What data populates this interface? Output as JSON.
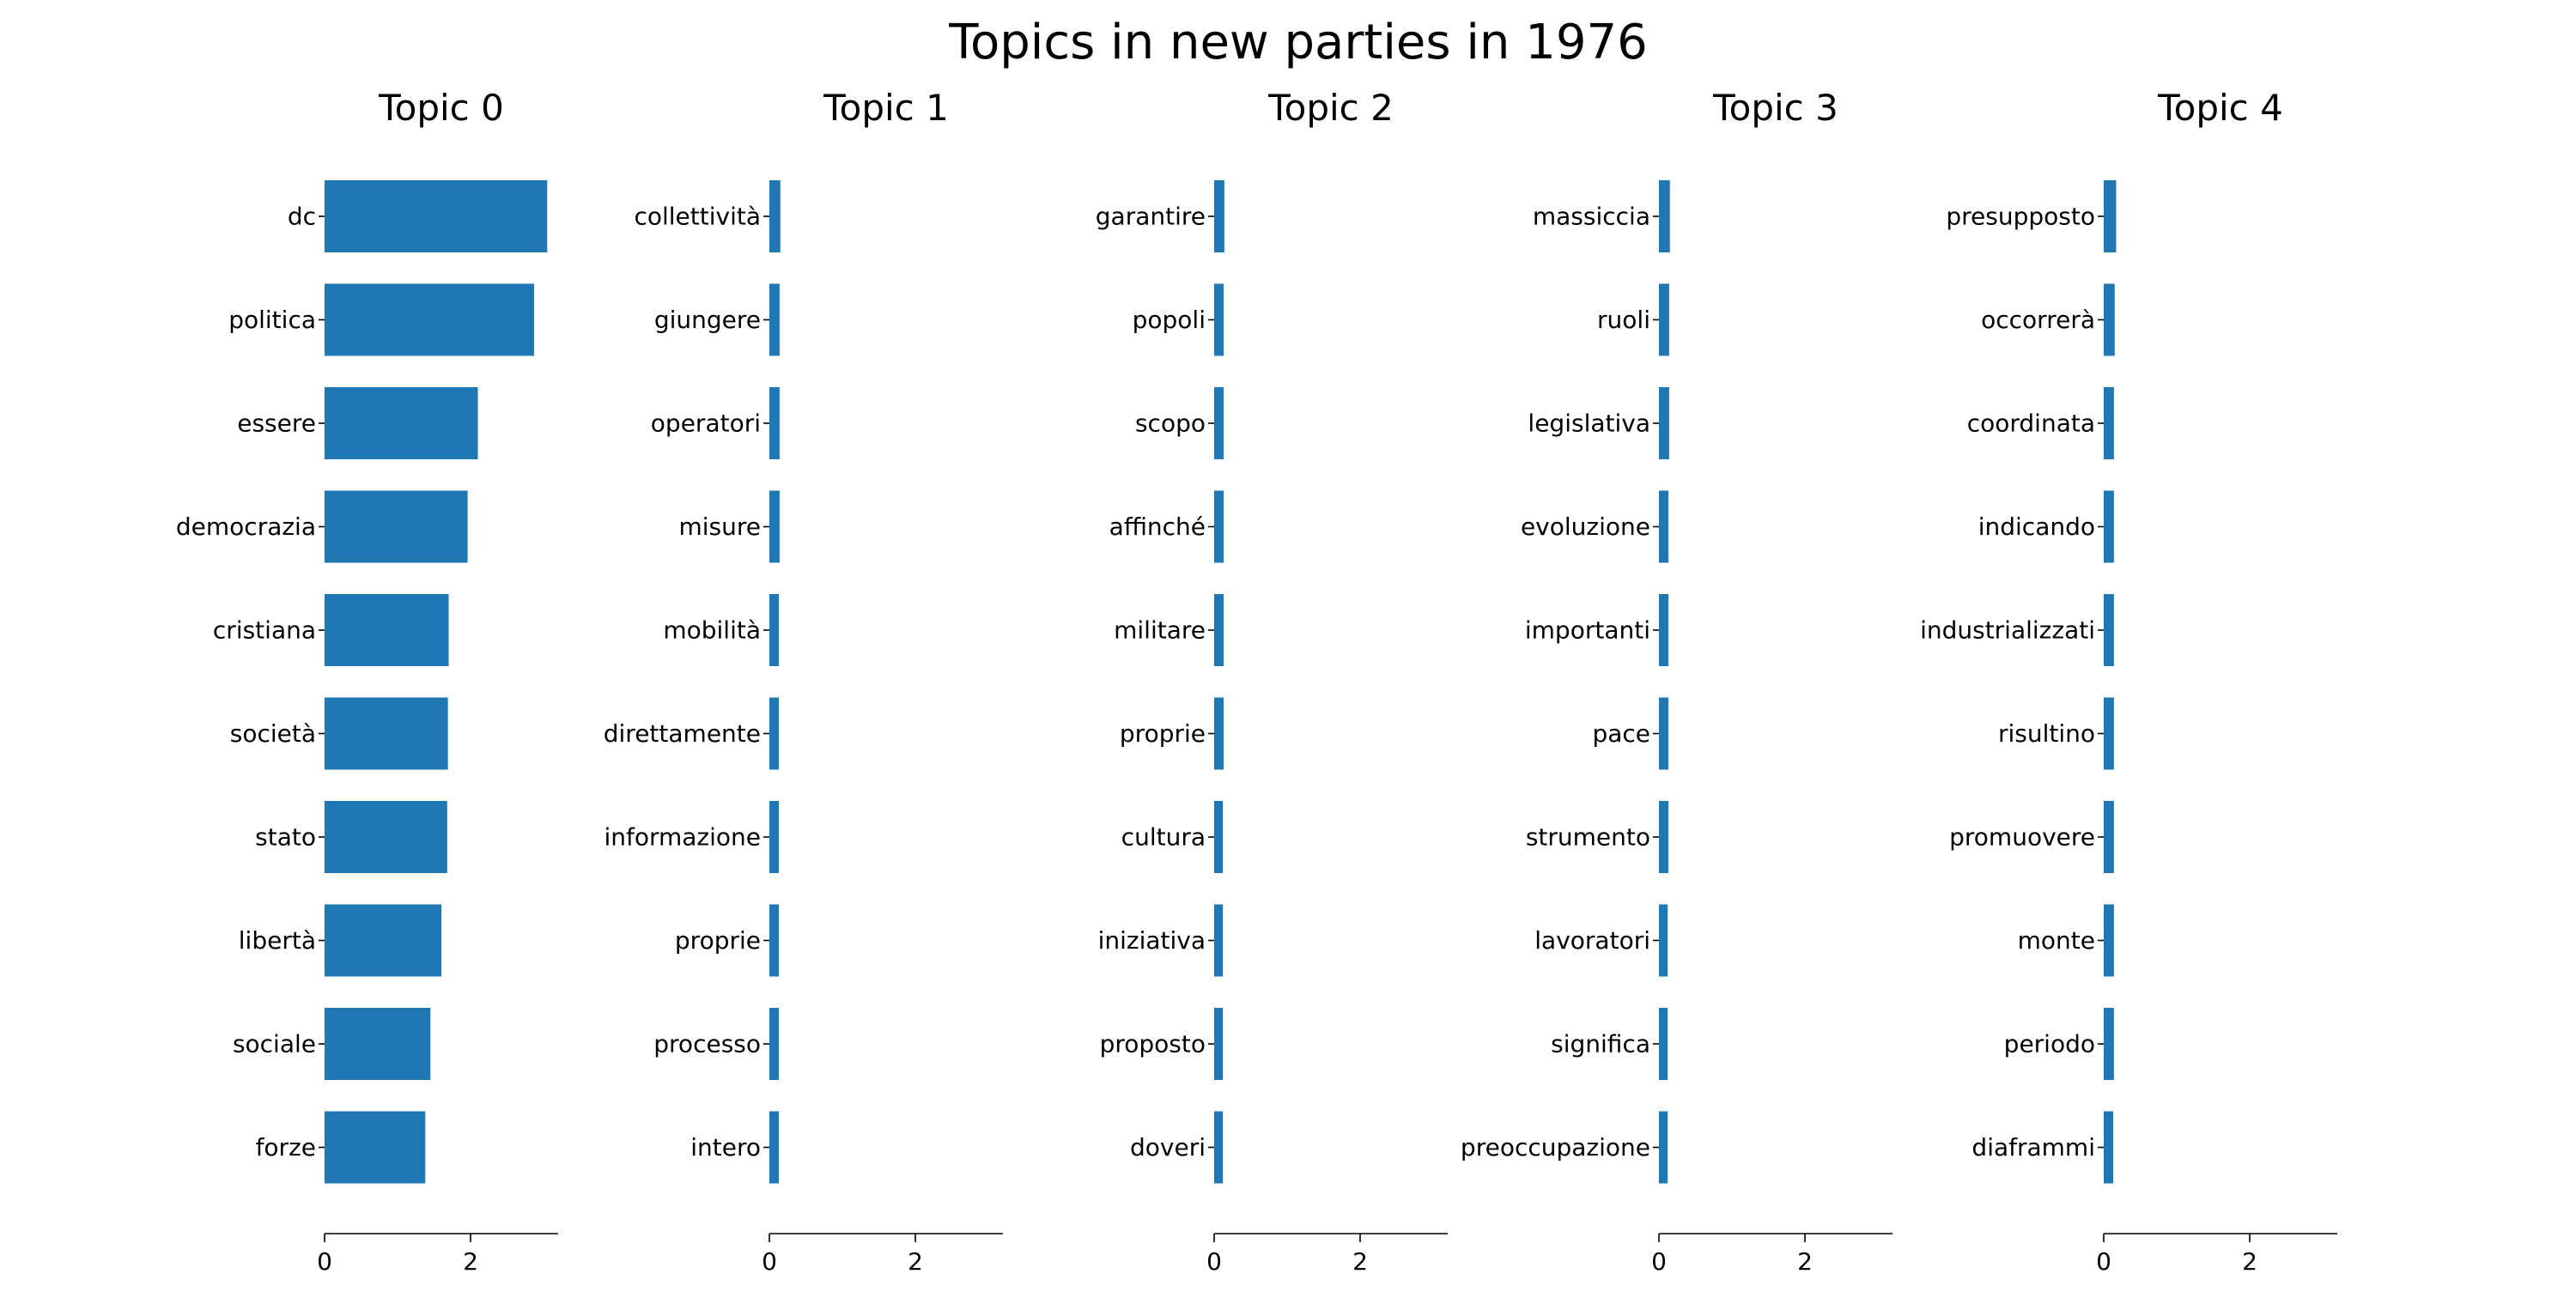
{
  "title": "Topics in new parties in 1976",
  "colors": {
    "bar": "#1f77b4",
    "axis": "#000000",
    "text": "#000000"
  },
  "chart_data": [
    {
      "type": "bar",
      "orientation": "horizontal",
      "title": "Topic 0",
      "categories": [
        "dc",
        "politica",
        "essere",
        "democrazia",
        "cristiana",
        "società",
        "stato",
        "libertà",
        "sociale",
        "forze"
      ],
      "values": [
        3.05,
        2.87,
        2.1,
        1.96,
        1.7,
        1.69,
        1.68,
        1.6,
        1.45,
        1.38
      ],
      "xlim": [
        0,
        3.2
      ],
      "xticks": [
        0,
        2
      ],
      "grid": false
    },
    {
      "type": "bar",
      "orientation": "horizontal",
      "title": "Topic 1",
      "categories": [
        "collettività",
        "giungere",
        "operatori",
        "misure",
        "mobilità",
        "direttamente",
        "informazione",
        "proprie",
        "processo",
        "intero"
      ],
      "values": [
        0.15,
        0.14,
        0.14,
        0.14,
        0.13,
        0.13,
        0.13,
        0.13,
        0.13,
        0.13
      ],
      "xlim": [
        0,
        3.2
      ],
      "xticks": [
        0,
        2
      ],
      "grid": false
    },
    {
      "type": "bar",
      "orientation": "horizontal",
      "title": "Topic 2",
      "categories": [
        "garantire",
        "popoli",
        "scopo",
        "affinché",
        "militare",
        "proprie",
        "cultura",
        "iniziativa",
        "proposto",
        "doveri"
      ],
      "values": [
        0.14,
        0.13,
        0.13,
        0.13,
        0.13,
        0.13,
        0.12,
        0.12,
        0.12,
        0.12
      ],
      "xlim": [
        0,
        3.2
      ],
      "xticks": [
        0,
        2
      ],
      "grid": false
    },
    {
      "type": "bar",
      "orientation": "horizontal",
      "title": "Topic 3",
      "categories": [
        "massiccia",
        "ruoli",
        "legislativa",
        "evoluzione",
        "importanti",
        "pace",
        "strumento",
        "lavoratori",
        "significa",
        "preoccupazione"
      ],
      "values": [
        0.15,
        0.14,
        0.14,
        0.13,
        0.13,
        0.13,
        0.13,
        0.12,
        0.12,
        0.12
      ],
      "xlim": [
        0,
        3.2
      ],
      "xticks": [
        0,
        2
      ],
      "grid": false
    },
    {
      "type": "bar",
      "orientation": "horizontal",
      "title": "Topic 4",
      "categories": [
        "presupposto",
        "occorrerà",
        "coordinata",
        "indicando",
        "industrializzati",
        "risultino",
        "promuovere",
        "monte",
        "periodo",
        "diaframmi"
      ],
      "values": [
        0.17,
        0.15,
        0.14,
        0.14,
        0.14,
        0.14,
        0.14,
        0.14,
        0.14,
        0.13
      ],
      "xlim": [
        0,
        3.2
      ],
      "xticks": [
        0,
        2
      ],
      "grid": false
    }
  ]
}
